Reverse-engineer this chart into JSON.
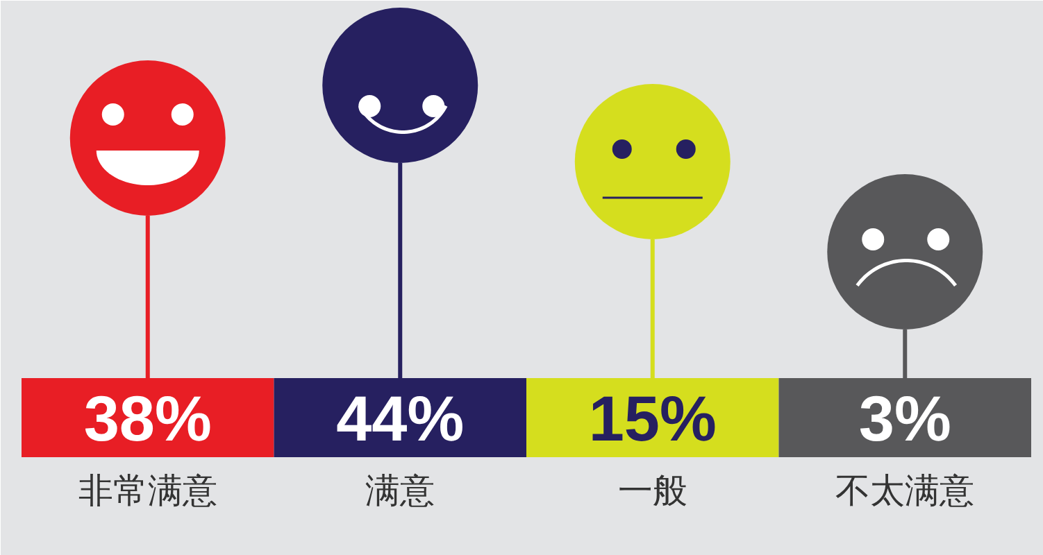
{
  "chart_data": {
    "type": "other",
    "categories": [
      "非常满意",
      "满意",
      "一般",
      "不太满意"
    ],
    "values": [
      38,
      44,
      15,
      3
    ],
    "value_labels": [
      "38%",
      "44%",
      "15%",
      "3%"
    ],
    "colors": [
      "#e81e25",
      "#262060",
      "#d5de1e",
      "#58585a"
    ]
  }
}
